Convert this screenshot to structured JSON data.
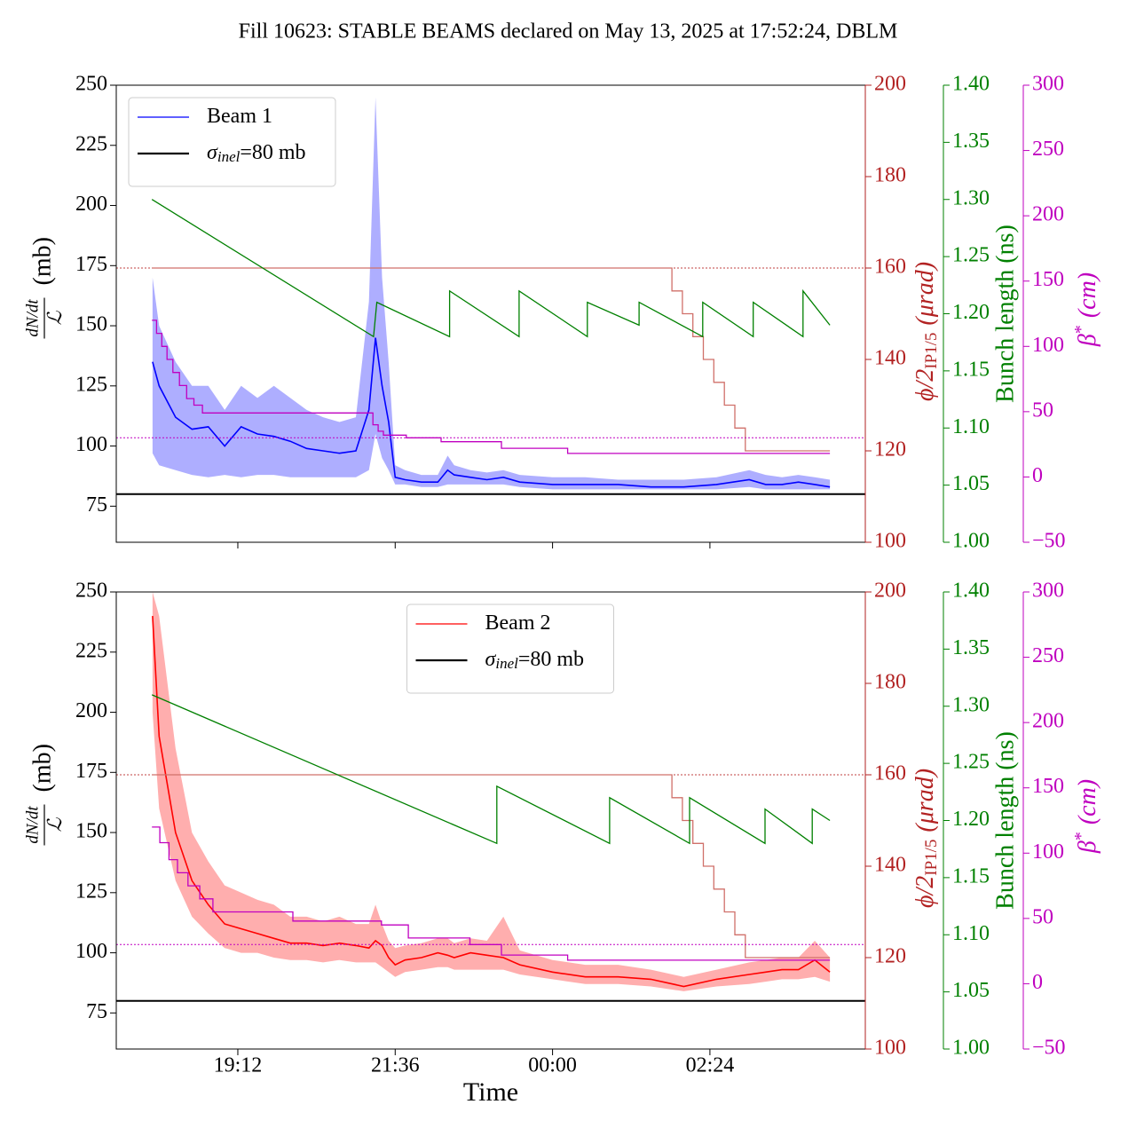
{
  "chart_data": [
    {
      "type": "line",
      "title": "Fill 10623: STABLE BEAMS declared on May 13, 2025 at 17:52:24, DBLM",
      "xlim": [
        17.346,
        28.77
      ],
      "xticks": [
        19.2,
        21.6,
        24,
        26.4
      ],
      "ylim": [
        60,
        250
      ],
      "yticks": [
        75,
        100,
        125,
        150,
        175,
        200,
        225,
        250
      ],
      "y2lim": [
        100,
        200
      ],
      "y2ticks": [
        100,
        120,
        140,
        160,
        180,
        200
      ],
      "y2color": "#b22222",
      "y3lim": [
        1.0,
        1.4
      ],
      "y3ticks": [
        {
          "value": 1.0,
          "label": "1.00"
        },
        1.05,
        {
          "value": 1.1,
          "label": "1.10"
        },
        1.15,
        {
          "value": 1.2,
          "label": "1.20"
        },
        1.25,
        {
          "value": 1.3,
          "label": "1.30"
        },
        1.35,
        {
          "value": 1.4,
          "label": "1.40"
        }
      ],
      "y3color": "#008000",
      "y4lim": [
        -50,
        300
      ],
      "y4ticks": [
        {
          "value": -50,
          "label": "−50"
        },
        0,
        50,
        100,
        150,
        200,
        250,
        300
      ],
      "y4color": "#bf00bf",
      "ylabel": {
        "numerator": "dN/dt",
        "denominator": "ℒ",
        "unit": "(mb)"
      },
      "y2label": {
        "main": "ϕ/2",
        "subscript": "IP1/5",
        "unit": "(μrad)"
      },
      "y3label": "Bunch length (ns)",
      "y4label": {
        "main": "β",
        "superscript": "*",
        "unit": "(cm)"
      },
      "legend": "upper left",
      "series": [
        {
          "name": "Beam 1",
          "color": "#0000ff",
          "x": [
            17.9,
            18.0,
            18.25,
            18.5,
            18.75,
            19.0,
            19.25,
            19.5,
            19.75,
            20.0,
            20.25,
            20.5,
            20.75,
            21.0,
            21.2,
            21.3,
            21.4,
            21.5,
            21.6,
            21.75,
            22.0,
            22.25,
            22.4,
            22.5,
            22.75,
            23.0,
            23.25,
            23.5,
            24,
            24.5,
            25,
            25.5,
            26,
            26.5,
            27,
            27.25,
            27.5,
            27.75,
            28.0,
            28.23
          ],
          "values": [
            135,
            125,
            112,
            107,
            108,
            100,
            108,
            105,
            104,
            102,
            99,
            98,
            97,
            98,
            115,
            145,
            125,
            110,
            87,
            86,
            85,
            85,
            90,
            88,
            87,
            86,
            87,
            85,
            84,
            84,
            84,
            83,
            83,
            84,
            86,
            84,
            84,
            85,
            84,
            83
          ],
          "band": {
            "color": "#9a9aff",
            "lower": [
              97,
              92,
              90,
              88,
              87,
              88,
              87,
              88,
              88,
              87,
              87,
              87,
              87,
              87,
              90,
              105,
              95,
              90,
              84,
              84,
              83,
              83,
              84,
              84,
              84,
              84,
              84,
              83,
              82,
              82,
              82,
              82,
              82,
              82,
              83,
              82,
              82,
              82,
              82,
              82
            ],
            "upper": [
              170,
              150,
              135,
              125,
              125,
              115,
              125,
              120,
              125,
              120,
              115,
              112,
              110,
              112,
              160,
              245,
              170,
              135,
              92,
              90,
              88,
              88,
              96,
              92,
              90,
              89,
              90,
              88,
              87,
              87,
              86,
              86,
              86,
              87,
              90,
              88,
              87,
              88,
              87,
              86
            ]
          }
        },
        {
          "name_symbol": "σ",
          "name_subscript": "inel",
          "name": "=80 mb",
          "color": "#000000",
          "hline": 80
        },
        {
          "axis": "y2",
          "color": "#d0706a",
          "drawstyle": "steps-post",
          "hline": 160,
          "hline_color": "#c04040",
          "x": [
            17.89,
            25.82,
            25.98,
            26.14,
            26.3,
            26.46,
            26.62,
            26.78,
            26.94,
            28.23
          ],
          "values": [
            160,
            155,
            150,
            145,
            140,
            135,
            130,
            125,
            120,
            120
          ]
        },
        {
          "axis": "y3",
          "color": "#008000",
          "x": [
            17.89,
            21.27,
            21.32,
            22.43,
            22.43,
            23.49,
            23.49,
            24.53,
            24.53,
            25.32,
            25.32,
            26.29,
            26.29,
            27.06,
            27.06,
            27.82,
            27.82,
            28.23
          ],
          "values": [
            1.3,
            1.18,
            1.21,
            1.18,
            1.22,
            1.18,
            1.22,
            1.18,
            1.21,
            1.19,
            1.21,
            1.18,
            1.21,
            1.18,
            1.21,
            1.18,
            1.22,
            1.19
          ]
        },
        {
          "axis": "y4",
          "color": "#c000c0",
          "drawstyle": "steps-post",
          "hline": 30,
          "x": [
            17.89,
            17.96,
            18.04,
            18.12,
            18.21,
            18.31,
            18.42,
            18.53,
            18.66,
            21.26,
            21.34,
            21.42,
            21.77,
            22.3,
            23.22,
            24.23,
            28.23
          ],
          "values": [
            120,
            110,
            100,
            90,
            80,
            70,
            60,
            55,
            49,
            40,
            35,
            32,
            30,
            27,
            22,
            18,
            18
          ]
        }
      ]
    },
    {
      "type": "line",
      "xlabel": "Time",
      "xlim": [
        17.346,
        28.77
      ],
      "xticks": [
        {
          "value": 19.2,
          "label": "19:12"
        },
        {
          "value": 21.6,
          "label": "21:36"
        },
        {
          "value": 24,
          "label": "00:00"
        },
        {
          "value": 26.4,
          "label": "02:24"
        }
      ],
      "ylim": [
        60,
        250
      ],
      "yticks": [
        75,
        100,
        125,
        150,
        175,
        200,
        225,
        250
      ],
      "y2lim": [
        100,
        200
      ],
      "y2ticks": [
        100,
        120,
        140,
        160,
        180,
        200
      ],
      "y2color": "#b22222",
      "y3lim": [
        1.0,
        1.4
      ],
      "y3ticks": [
        {
          "value": 1.0,
          "label": "1.00"
        },
        1.05,
        {
          "value": 1.1,
          "label": "1.10"
        },
        1.15,
        {
          "value": 1.2,
          "label": "1.20"
        },
        1.25,
        {
          "value": 1.3,
          "label": "1.30"
        },
        1.35,
        {
          "value": 1.4,
          "label": "1.40"
        }
      ],
      "y3color": "#008000",
      "y4lim": [
        -50,
        300
      ],
      "y4ticks": [
        {
          "value": -50,
          "label": "−50"
        },
        0,
        50,
        100,
        150,
        200,
        250,
        300
      ],
      "y4color": "#bf00bf",
      "ylabel": {
        "numerator": "dN/dt",
        "denominator": "ℒ",
        "unit": "(mb)"
      },
      "y2label": {
        "main": "ϕ/2",
        "subscript": "IP1/5",
        "unit": "(μrad)"
      },
      "y3label": "Bunch length (ns)",
      "y4label": {
        "main": "β",
        "superscript": "*",
        "unit": "(cm)"
      },
      "legend": "upper center",
      "series": [
        {
          "name": "Beam 2",
          "color": "#ff0000",
          "x": [
            17.9,
            18.0,
            18.25,
            18.5,
            18.75,
            19.0,
            19.25,
            19.5,
            19.75,
            20.0,
            20.25,
            20.5,
            20.75,
            21.0,
            21.2,
            21.3,
            21.4,
            21.5,
            21.6,
            21.75,
            22.0,
            22.25,
            22.4,
            22.5,
            22.75,
            23.0,
            23.25,
            23.5,
            24,
            24.5,
            25,
            25.5,
            26,
            26.5,
            27,
            27.25,
            27.5,
            27.75,
            28.0,
            28.23
          ],
          "values": [
            240,
            190,
            150,
            130,
            120,
            112,
            110,
            108,
            106,
            104,
            104,
            103,
            104,
            103,
            102,
            105,
            103,
            98,
            95,
            97,
            98,
            100,
            99,
            98,
            100,
            99,
            98,
            95,
            92,
            90,
            90,
            89,
            86,
            89,
            91,
            92,
            93,
            93,
            97,
            92
          ],
          "band": {
            "color": "#ff9a9a",
            "lower": [
              200,
              160,
              130,
              115,
              108,
              102,
              100,
              100,
              98,
              97,
              97,
              96,
              97,
              96,
              96,
              96,
              94,
              92,
              90,
              92,
              93,
              94,
              94,
              93,
              93,
              93,
              93,
              91,
              89,
              87,
              87,
              86,
              84,
              86,
              87,
              88,
              89,
              89,
              90,
              88
            ],
            "upper": [
              250,
              240,
              185,
              150,
              138,
              128,
              125,
              122,
              120,
              115,
              115,
              113,
              115,
              112,
              112,
              120,
              112,
              105,
              102,
              103,
              104,
              106,
              106,
              104,
              106,
              105,
              115,
              101,
              97,
              95,
              95,
              93,
              90,
              93,
              96,
              97,
              98,
              98,
              105,
              98
            ]
          }
        },
        {
          "name_symbol": "σ",
          "name_subscript": "inel",
          "name": "=80 mb",
          "color": "#000000",
          "hline": 80
        },
        {
          "axis": "y2",
          "color": "#d0706a",
          "drawstyle": "steps-post",
          "hline": 160,
          "hline_color": "#c04040",
          "x": [
            17.89,
            25.82,
            25.98,
            26.14,
            26.3,
            26.46,
            26.62,
            26.78,
            26.94,
            28.23
          ],
          "values": [
            160,
            155,
            150,
            145,
            140,
            135,
            130,
            125,
            120,
            120
          ]
        },
        {
          "axis": "y3",
          "color": "#008000",
          "x": [
            17.89,
            23.15,
            23.15,
            24.87,
            24.87,
            26.09,
            26.09,
            27.24,
            27.24,
            27.96,
            27.96,
            28.23
          ],
          "values": [
            1.31,
            1.18,
            1.23,
            1.18,
            1.22,
            1.18,
            1.22,
            1.18,
            1.21,
            1.18,
            1.21,
            1.2
          ]
        },
        {
          "axis": "y4",
          "color": "#c000c0",
          "drawstyle": "steps-post",
          "hline": 30,
          "x": [
            17.89,
            18.01,
            18.15,
            18.28,
            18.44,
            18.62,
            18.82,
            20.04,
            21.39,
            21.8,
            22.74,
            23.22,
            24.23,
            28.23
          ],
          "values": [
            120,
            108,
            95,
            85,
            75,
            65,
            55,
            48,
            45,
            35,
            30,
            22,
            18,
            18
          ]
        }
      ]
    }
  ]
}
